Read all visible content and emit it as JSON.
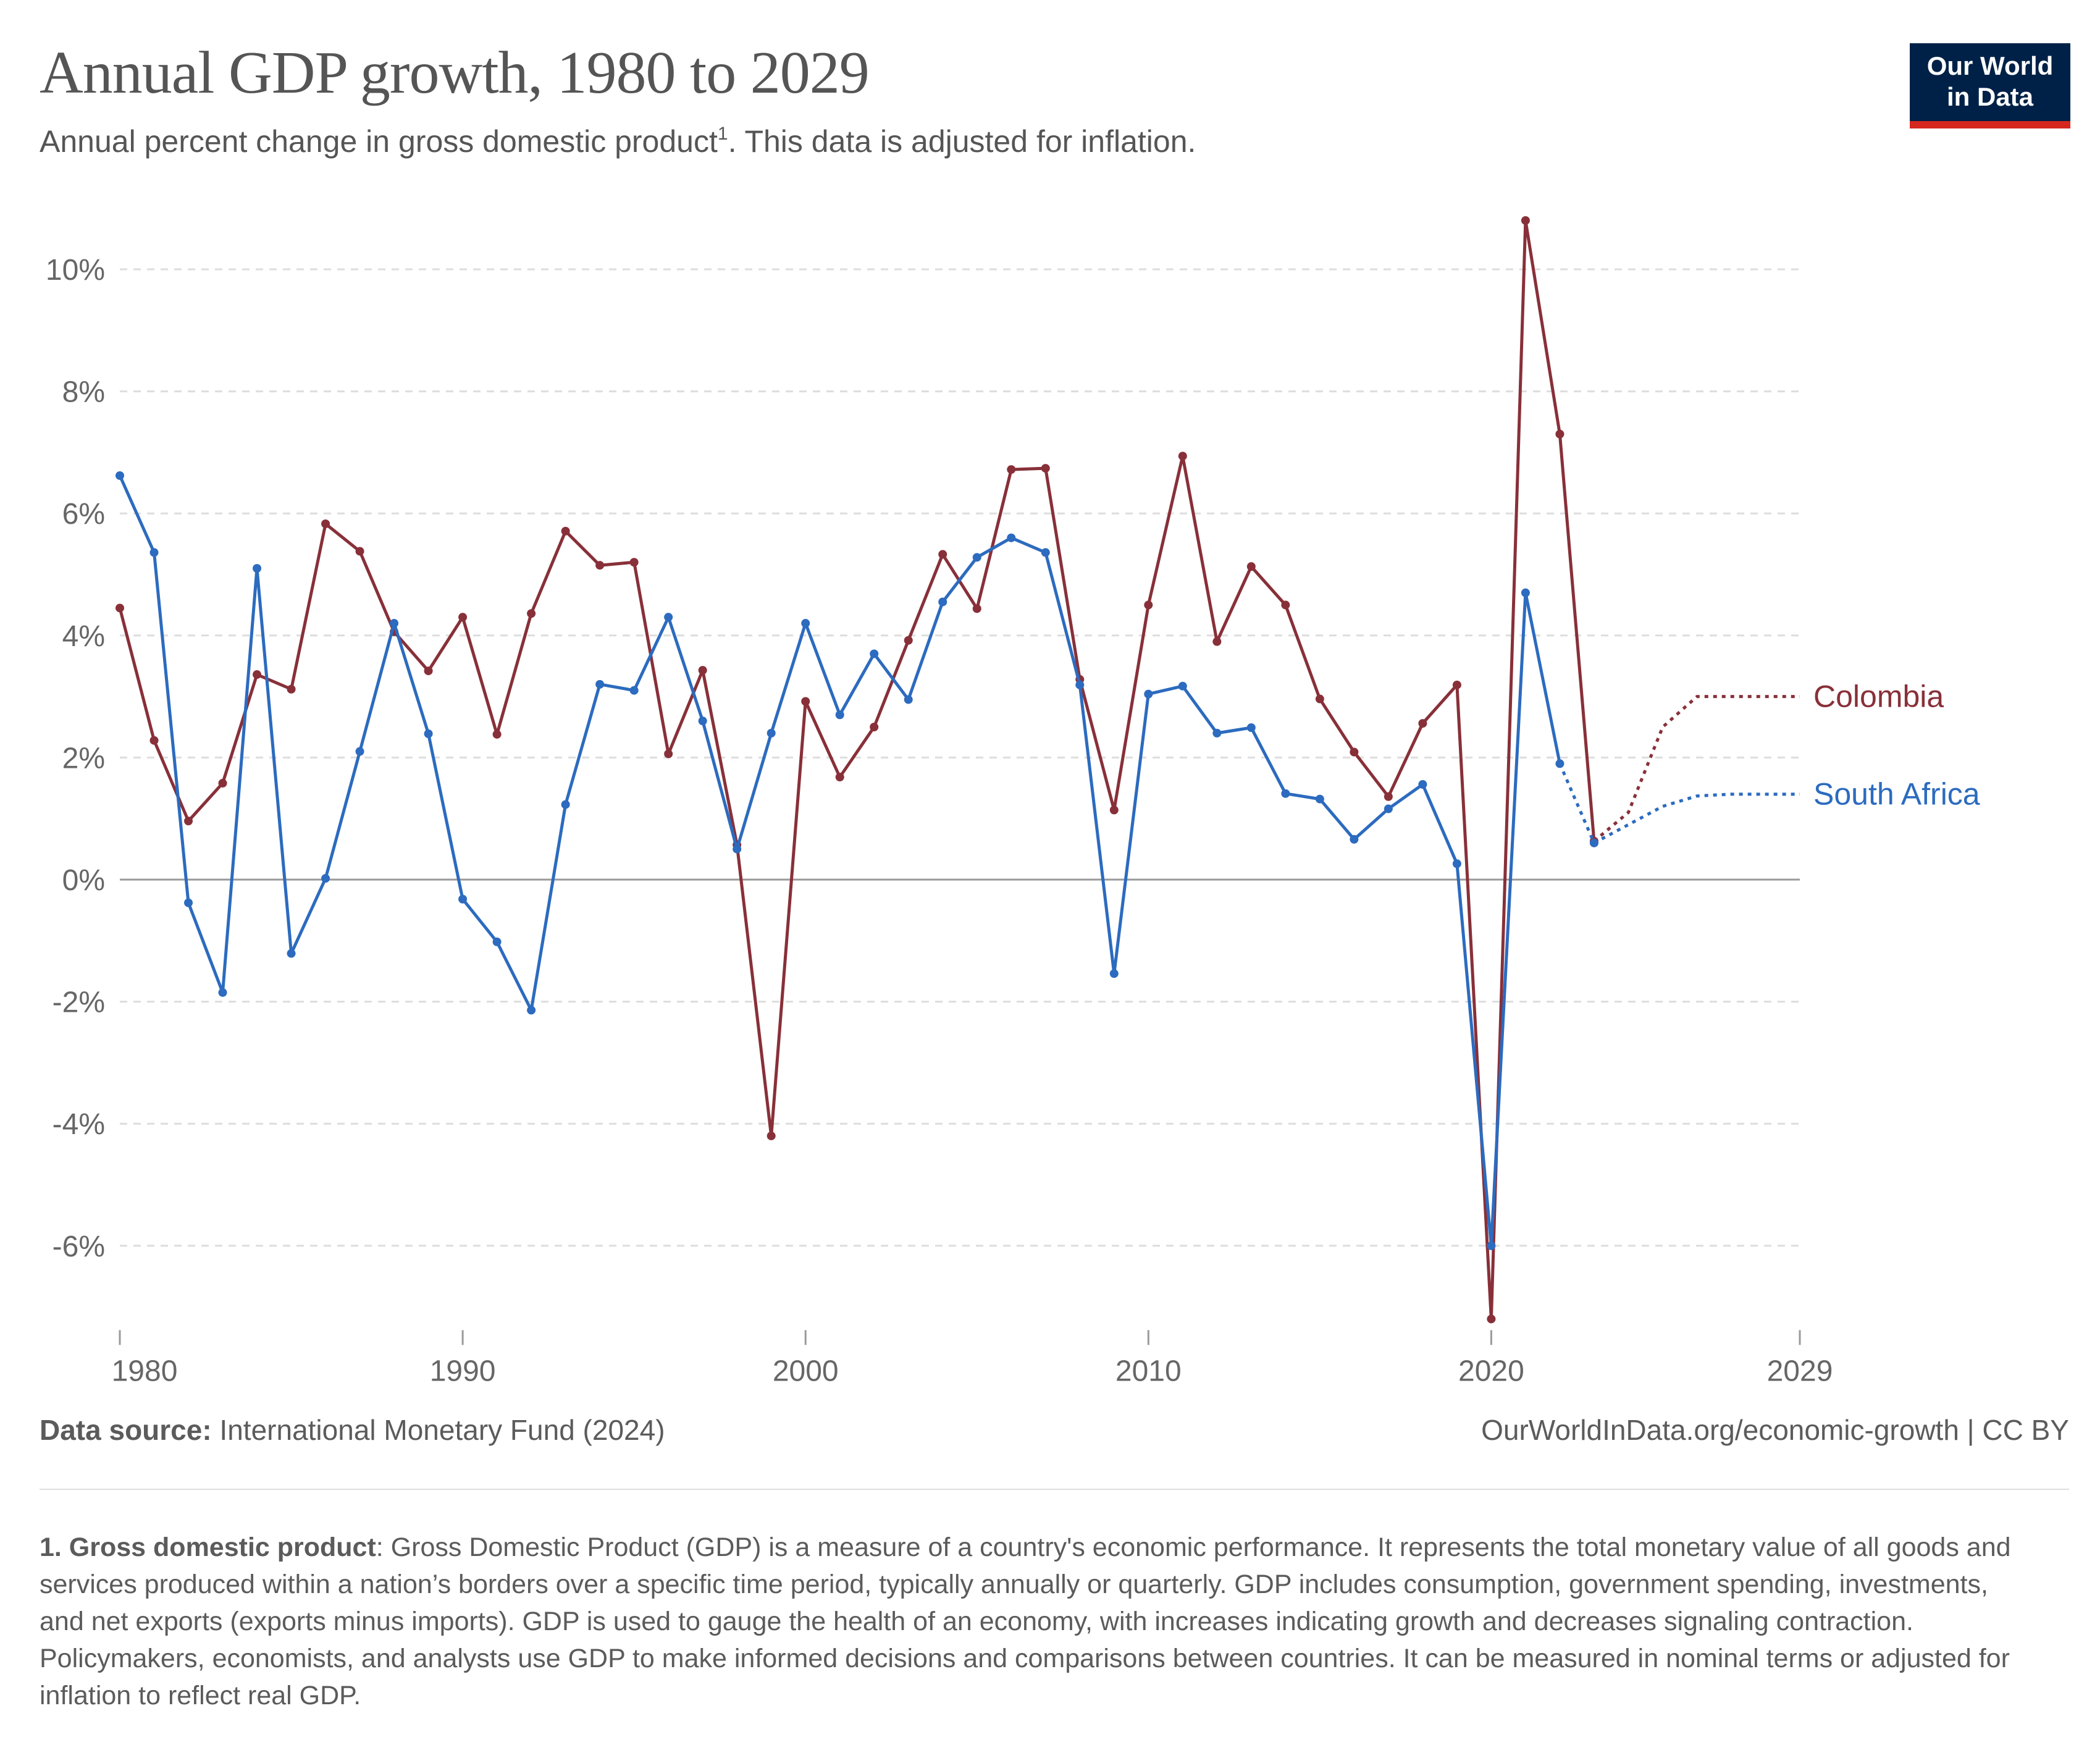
{
  "header": {
    "title": "Annual GDP growth, 1980 to 2029",
    "subtitle": "Annual percent change in gross domestic product",
    "subtitle_footnote_mark": "1",
    "subtitle_tail": ". This data is adjusted for inflation."
  },
  "logo": {
    "line1": "Our World",
    "line2": "in Data",
    "bg_color": "#002147",
    "accent_color": "#d6271f"
  },
  "footer": {
    "source_label": "Data source:",
    "source_text": " International Monetary Fund (2024)",
    "url_text": "OurWorldInData.org/economic-growth | CC BY"
  },
  "footnote": {
    "term": "1. Gross domestic product",
    "text": ": Gross Domestic Product (GDP) is a measure of a country's economic performance. It represents the total monetary value of all goods and services produced within a nation’s borders over a specific time period, typically annually or quarterly. GDP includes consumption, government spending, investments, and net exports (exports minus imports). GDP is used to gauge the health of an economy, with increases indicating growth and decreases signaling contraction. Policymakers, economists, and analysts use GDP to make informed decisions and comparisons between countries. It can be measured in nominal terms or adjusted for inflation to reflect real GDP."
  },
  "chart_data": {
    "type": "line",
    "title": "Annual GDP growth, 1980 to 2029",
    "xlabel": "",
    "ylabel": "",
    "xlim": [
      1980,
      2029
    ],
    "ylim": [
      -7.2,
      10.8
    ],
    "x_ticks": [
      1980,
      1990,
      2000,
      2010,
      2020,
      2029
    ],
    "y_ticks": [
      -6,
      -4,
      -2,
      0,
      2,
      4,
      6,
      8,
      10
    ],
    "y_tick_labels": [
      "-6%",
      "-4%",
      "-2%",
      "0%",
      "2%",
      "4%",
      "6%",
      "8%",
      "10%"
    ],
    "grid": "horizontal dashed",
    "legend": "inline-right",
    "forecast_style": "dotted after 2023",
    "series": [
      {
        "name": "Colombia",
        "color": "#883039",
        "x": [
          1980,
          1981,
          1982,
          1983,
          1984,
          1985,
          1986,
          1987,
          1988,
          1989,
          1990,
          1991,
          1992,
          1993,
          1994,
          1995,
          1996,
          1997,
          1998,
          1999,
          2000,
          2001,
          2002,
          2003,
          2004,
          2005,
          2006,
          2007,
          2008,
          2009,
          2010,
          2011,
          2012,
          2013,
          2014,
          2015,
          2016,
          2017,
          2018,
          2019,
          2020,
          2021,
          2022,
          2023,
          2024,
          2025,
          2026,
          2027,
          2028,
          2029
        ],
        "values": [
          4.45,
          2.28,
          0.96,
          1.58,
          3.36,
          3.12,
          5.83,
          5.38,
          4.06,
          3.42,
          4.3,
          2.38,
          4.36,
          5.71,
          5.15,
          5.2,
          2.06,
          3.43,
          0.57,
          -4.2,
          2.92,
          1.68,
          2.5,
          3.92,
          5.33,
          4.44,
          6.72,
          6.74,
          3.28,
          1.14,
          4.5,
          6.94,
          3.9,
          5.13,
          4.5,
          2.96,
          2.09,
          1.36,
          2.56,
          3.19,
          -7.2,
          10.8,
          7.3,
          0.63,
          1.1,
          2.5,
          3.0,
          3.0,
          3.0,
          3.0
        ],
        "forecast_from": 2023
      },
      {
        "name": "South Africa",
        "color": "#2c6bbf",
        "x": [
          1980,
          1981,
          1982,
          1983,
          1984,
          1985,
          1986,
          1987,
          1988,
          1989,
          1990,
          1991,
          1992,
          1993,
          1994,
          1995,
          1996,
          1997,
          1998,
          1999,
          2000,
          2001,
          2002,
          2003,
          2004,
          2005,
          2006,
          2007,
          2008,
          2009,
          2010,
          2011,
          2012,
          2013,
          2014,
          2015,
          2016,
          2017,
          2018,
          2019,
          2020,
          2021,
          2022,
          2023,
          2024,
          2025,
          2026,
          2027,
          2028,
          2029
        ],
        "values": [
          6.62,
          5.36,
          -0.38,
          -1.85,
          5.1,
          -1.21,
          0.02,
          2.1,
          4.2,
          2.39,
          -0.32,
          -1.02,
          -2.14,
          1.23,
          3.2,
          3.1,
          4.3,
          2.6,
          0.5,
          2.4,
          4.2,
          2.7,
          3.7,
          2.95,
          4.55,
          5.28,
          5.6,
          5.36,
          3.19,
          -1.54,
          3.04,
          3.17,
          2.4,
          2.49,
          1.41,
          1.32,
          0.66,
          1.16,
          1.56,
          0.26,
          -6.0,
          4.7,
          1.9,
          0.6,
          0.9,
          1.2,
          1.37,
          1.4,
          1.4,
          1.4
        ],
        "forecast_from": 2022
      }
    ]
  }
}
